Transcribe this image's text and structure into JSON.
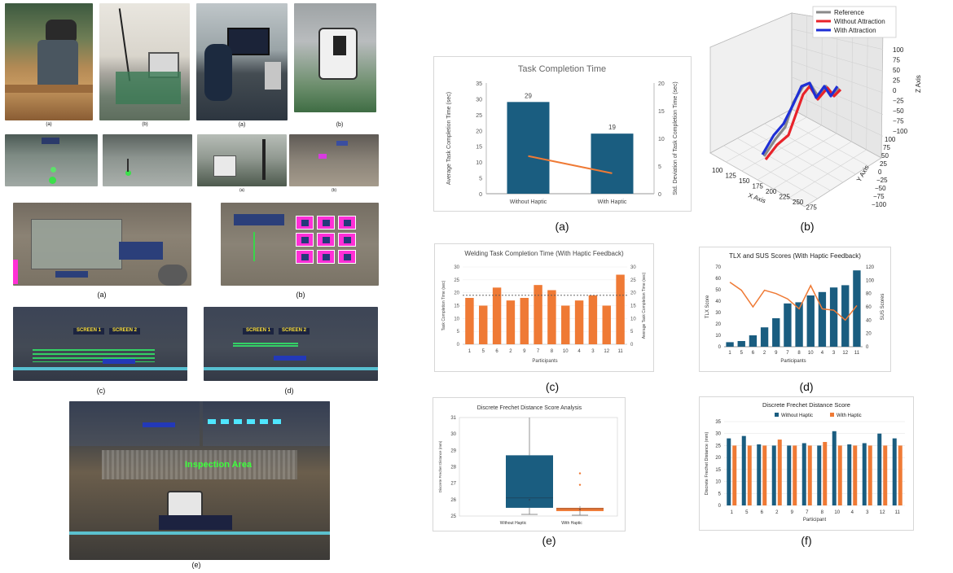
{
  "photos": {
    "row1_caps": [
      "(a)",
      "(b)",
      "(a)",
      "(b)"
    ],
    "row2_caps": [
      "(a)",
      "(b)"
    ],
    "row3_caps": [
      "(a)",
      "(b)"
    ],
    "row4_caps": [
      "(c)",
      "(d)"
    ],
    "row5_caps": [
      "(e)"
    ],
    "screen1": "SCREEN 1",
    "screen2": "SCREEN 2",
    "inspection": "Inspection Area"
  },
  "captions": {
    "a": "(a)",
    "b": "(b)",
    "c": "(c)",
    "d": "(d)",
    "e": "(e)",
    "f": "(f)"
  },
  "colors": {
    "navy": "#1a5d80",
    "orange": "#ef7a35",
    "red": "#e8232a",
    "blue": "#1e2fd6",
    "gray": "#8a8a8a",
    "magenta": "#ff2fd6"
  },
  "chart_data": [
    {
      "id": "a",
      "type": "bar",
      "title": "Task Completion Time",
      "categories": [
        "Without Haptic",
        "With Haptic"
      ],
      "values": [
        29,
        19
      ],
      "value_labels": [
        "29",
        "19"
      ],
      "ylabel": "Average Task Completion Time (sec)",
      "y2label": "Std. Deviation of Task Completion Time (sec)",
      "ylim": [
        0,
        35
      ],
      "yticks": [
        "0",
        "5",
        "10",
        "15",
        "20",
        "25",
        "30",
        "35"
      ],
      "y2lim": [
        0,
        20
      ],
      "y2ticks": [
        "0",
        "5",
        "10",
        "15",
        "20"
      ],
      "line_series": {
        "values": [
          6.8,
          3.7
        ],
        "axis": "right"
      }
    },
    {
      "id": "b",
      "type": "line",
      "legend": [
        "Reference",
        "Without Attraction",
        "With Attraction"
      ],
      "xlabel": "X Axis",
      "ylabel": "Y Axis",
      "zlabel": "Z Axis",
      "xticks": [
        "100",
        "125",
        "150",
        "175",
        "200",
        "225",
        "250",
        "275"
      ],
      "yticks": [
        "100",
        "75",
        "50",
        "25",
        "0",
        "−25",
        "−50",
        "−75",
        "−100"
      ],
      "zticks": [
        "100",
        "75",
        "50",
        "25",
        "0",
        "−25",
        "−50",
        "−75",
        "−100"
      ]
    },
    {
      "id": "c",
      "type": "bar",
      "title": "Welding Task Completion Time (With Haptic Feedback)",
      "categories": [
        "1",
        "5",
        "6",
        "2",
        "9",
        "7",
        "8",
        "10",
        "4",
        "3",
        "12",
        "11"
      ],
      "values": [
        18,
        15,
        22,
        17,
        18,
        23,
        21,
        15,
        17,
        19,
        15,
        27
      ],
      "reference": 19,
      "xlabel": "Participants",
      "ylabel": "Task Completion Time (sec)",
      "y2label": "Average Task Completion Time (sec)",
      "ylim": [
        0,
        30
      ],
      "yticks": [
        "0",
        "5",
        "10",
        "15",
        "20",
        "25",
        "30"
      ],
      "y2ticks": [
        "0",
        "5",
        "10",
        "15",
        "20",
        "25",
        "30"
      ]
    },
    {
      "id": "d",
      "type": "bar",
      "title": "TLX and SUS Scores (With Haptic Feedback)",
      "categories": [
        "1",
        "5",
        "6",
        "2",
        "9",
        "7",
        "8",
        "10",
        "4",
        "3",
        "12",
        "11"
      ],
      "series": [
        {
          "name": "TLX Score",
          "values": [
            4,
            5,
            10,
            17,
            25,
            38,
            39,
            45,
            48,
            52,
            54,
            67
          ]
        },
        {
          "name": "SUS Score",
          "values": [
            97,
            85,
            60,
            85,
            80,
            72,
            57,
            92,
            57,
            55,
            40,
            62
          ],
          "axis": "right"
        }
      ],
      "xlabel": "Participants",
      "ylabel": "TLX Score",
      "y2label": "SUS Scores",
      "ylim": [
        0,
        70
      ],
      "yticks": [
        "0",
        "10",
        "20",
        "30",
        "40",
        "50",
        "60",
        "70"
      ],
      "y2lim": [
        0,
        120
      ],
      "y2ticks": [
        "0",
        "20",
        "40",
        "60",
        "80",
        "100",
        "120"
      ]
    },
    {
      "id": "e",
      "type": "box",
      "title": "Discrete Frechet Distance Score Analysis",
      "categories": [
        "Without Haptic",
        "With Haptic"
      ],
      "boxes": [
        {
          "min": 25.1,
          "q1": 25.5,
          "median": 26.1,
          "mean": 26.0,
          "q3": 28.7,
          "max": 31.0,
          "outliers": []
        },
        {
          "min": 25.05,
          "q1": 25.3,
          "median": 25.45,
          "mean": 25.4,
          "q3": 25.5,
          "max": 25.6,
          "outliers": [
            26.9,
            27.6
          ]
        }
      ],
      "ylabel": "Discrete Frechet Distance (mm)",
      "ylim": [
        25,
        31
      ],
      "yticks": [
        "25",
        "26",
        "27",
        "28",
        "29",
        "30",
        "31"
      ]
    },
    {
      "id": "f",
      "type": "bar",
      "title": "Discrete Frechet Distance Score",
      "categories": [
        "1",
        "5",
        "6",
        "2",
        "9",
        "7",
        "8",
        "10",
        "4",
        "3",
        "12",
        "11"
      ],
      "series": [
        {
          "name": "Without Haptic",
          "values": [
            28,
            29,
            25.5,
            25,
            25,
            26,
            25,
            31,
            25.5,
            26,
            30,
            28
          ]
        },
        {
          "name": "With Haptic",
          "values": [
            25,
            25,
            25,
            27.5,
            25,
            25,
            26.5,
            25,
            25,
            25,
            25,
            25
          ]
        }
      ],
      "xlabel": "Participant",
      "ylabel": "Discrete Frechet Distance (mm)",
      "ylim": [
        0,
        35
      ],
      "yticks": [
        "0",
        "5",
        "10",
        "15",
        "20",
        "25",
        "30",
        "35"
      ]
    }
  ]
}
